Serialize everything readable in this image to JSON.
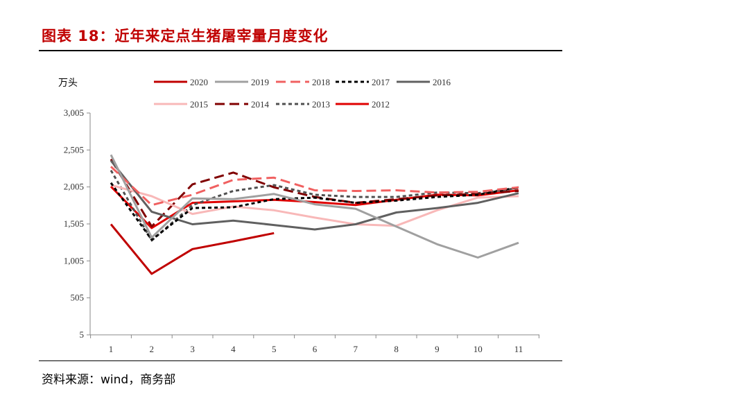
{
  "title": "图表 18：近年来定点生猪屠宰量月度变化",
  "source": "资料来源：wind，商务部",
  "chart_data": {
    "type": "line",
    "ylabel": "万头",
    "xlabel": "",
    "x": [
      1,
      2,
      3,
      4,
      5,
      6,
      7,
      8,
      9,
      10,
      11
    ],
    "ylim": [
      5,
      3005
    ],
    "yticks": [
      5,
      505,
      1005,
      1505,
      2005,
      2505,
      3005
    ],
    "ytick_labels": [
      "5",
      "505",
      "1,005",
      "1,505",
      "2,005",
      "2,505",
      "3,005"
    ],
    "grid": false,
    "legend": "top",
    "series": [
      {
        "name": "2020",
        "color": "#c00000",
        "dash": "solid",
        "values": [
          1500,
          830,
          1165,
          1270,
          1380,
          null,
          null,
          null,
          null,
          null,
          null
        ]
      },
      {
        "name": "2019",
        "color": "#a0a0a0",
        "dash": "solid",
        "values": [
          2440,
          1320,
          1850,
          1840,
          1910,
          1770,
          1710,
          1470,
          1230,
          1050,
          1250
        ]
      },
      {
        "name": "2018",
        "color": "#f06060",
        "dash": "long",
        "values": [
          2280,
          1760,
          1900,
          2100,
          2130,
          1960,
          1950,
          1960,
          1930,
          1940,
          2000
        ]
      },
      {
        "name": "2017",
        "color": "#000000",
        "dash": "short",
        "values": [
          2060,
          1290,
          1720,
          1730,
          1840,
          1860,
          1790,
          1820,
          1870,
          1900,
          2000
        ]
      },
      {
        "name": "2016",
        "color": "#606060",
        "dash": "solid",
        "values": [
          2360,
          1670,
          1500,
          1550,
          1490,
          1430,
          1500,
          1660,
          1720,
          1790,
          1920
        ]
      },
      {
        "name": "2015",
        "color": "#f8b8b8",
        "dash": "solid",
        "values": [
          2030,
          1880,
          1640,
          1740,
          1690,
          1590,
          1500,
          1480,
          1690,
          1860,
          1880
        ]
      },
      {
        "name": "2014",
        "color": "#800000",
        "dash": "long",
        "values": [
          2380,
          1470,
          2040,
          2200,
          2000,
          1870,
          1790,
          1840,
          1890,
          1910,
          1950
        ]
      },
      {
        "name": "2013",
        "color": "#505050",
        "dash": "short",
        "values": [
          2230,
          1280,
          1760,
          1950,
          2030,
          1900,
          1870,
          1870,
          1930,
          1920,
          1990
        ]
      },
      {
        "name": "2012",
        "color": "#e00000",
        "dash": "solid",
        "values": [
          2010,
          1450,
          1790,
          1810,
          1830,
          1800,
          1760,
          1830,
          1900,
          1890,
          1960
        ]
      }
    ]
  }
}
